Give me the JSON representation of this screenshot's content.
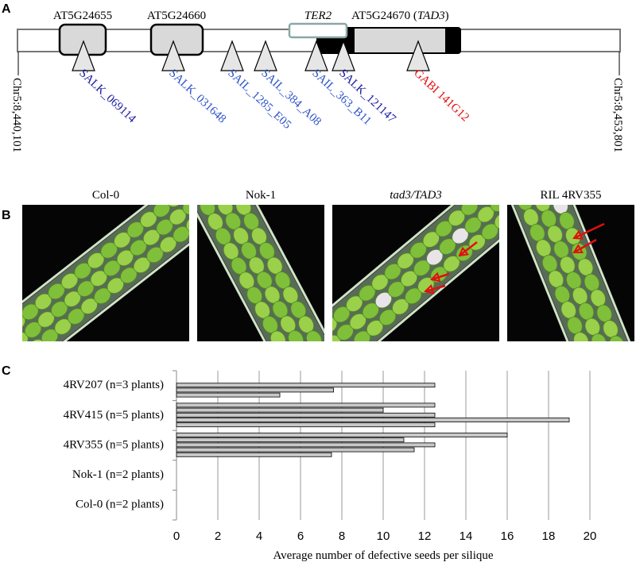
{
  "panel_a": {
    "label": "A",
    "genes": [
      "AT5G24655",
      "AT5G24660"
    ],
    "ter2": "TER2",
    "tad3_label": [
      "AT5G24670 (",
      "TAD3",
      ")"
    ],
    "insertions": [
      {
        "name": "SALK_069114",
        "color": "#1c1ca0"
      },
      {
        "name": "SALK_031648",
        "color": "#2f55c8"
      },
      {
        "name": "SAIL_1285_E05",
        "color": "#2f55c8"
      },
      {
        "name": "SAIL_384_A08",
        "color": "#2f55c8"
      },
      {
        "name": "SAIL_363_B11",
        "color": "#2f55c8"
      },
      {
        "name": "SALK_121147",
        "color": "#1c1ca0"
      },
      {
        "name": "GABI 141G12",
        "color": "#e01010"
      }
    ],
    "coordinates": [
      "Chr5:8,440,101",
      "Chr5:8,453,801"
    ]
  },
  "panel_b": {
    "label": "B",
    "samples": [
      {
        "name": "Col-0",
        "italic": false
      },
      {
        "name": "Nok-1",
        "italic": false
      },
      {
        "name": "tad3/TAD3",
        "italic": true
      },
      {
        "name": "RIL 4RV355",
        "italic": false
      }
    ]
  },
  "chart_data": {
    "type": "bar",
    "panel_label": "C",
    "categories": [
      "4RV207 (n=3 plants)",
      "4RV415 (n=5 plants)",
      "4RV355 (n=5 plants)",
      "Nok-1 (n=2 plants)",
      "Col-0 (n=2 plants)"
    ],
    "values": [
      [
        12.5,
        7.6,
        5
      ],
      [
        12.5,
        10,
        12.5,
        19,
        12.5
      ],
      [
        16,
        11,
        12.5,
        11.5,
        7.5
      ],
      [],
      []
    ],
    "color": "#c8c8c8",
    "xlim": [
      0,
      20
    ],
    "xticks": [
      0,
      2,
      4,
      6,
      8,
      10,
      12,
      14,
      16,
      18,
      20
    ],
    "x_label": "Average number of defective seeds per silique",
    "grid": true
  }
}
